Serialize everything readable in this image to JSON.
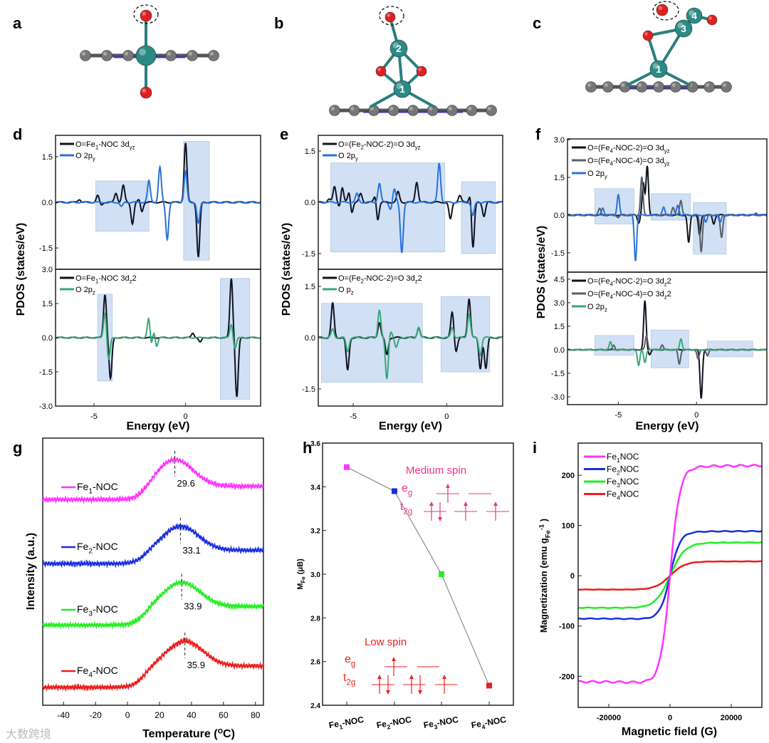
{
  "panel_letters": [
    "a",
    "b",
    "c",
    "d",
    "e",
    "f",
    "g",
    "h",
    "i"
  ],
  "structures": {
    "b_atom_labels": [
      "1",
      "2"
    ],
    "c_atom_labels": [
      "1",
      "3",
      "4"
    ]
  },
  "watermark": "大数跨境",
  "chart_data": [
    {
      "id": "d_top",
      "type": "line",
      "xlim": [
        -7.1,
        4.1
      ],
      "ylim": [
        -2.2,
        2.2
      ],
      "xticks": [],
      "yticks": [
        1.5,
        0,
        -1.5
      ],
      "ylabel": "PDOS (states/eV)",
      "highlight_boxes": [
        [
          -4.9,
          -2.0,
          -0.95,
          0.7
        ],
        [
          -0.1,
          1.3,
          -1.9,
          2.0
        ]
      ],
      "series": [
        {
          "name": "O=Fe_{1}-NOC 3d_{yz}",
          "color": "#10121e",
          "peaks": [
            [
              -5.8,
              0.1
            ],
            [
              -4.8,
              0.22
            ],
            [
              -3.8,
              0.6
            ],
            [
              -3.4,
              0.55
            ],
            [
              -2.9,
              0.2
            ],
            [
              -2.5,
              0.15
            ],
            [
              0,
              1.95
            ],
            [
              -3.8,
              -0.3
            ],
            [
              -2.9,
              -0.9
            ],
            [
              -2.4,
              -0.35
            ],
            [
              -4.6,
              -0.1
            ],
            [
              0.7,
              -1.8
            ]
          ]
        },
        {
          "name": "O 2p_{y}",
          "color": "#2a72d8",
          "peaks": [
            [
              -2.0,
              0.7
            ],
            [
              -1.4,
              1.15
            ],
            [
              0,
              1.0
            ],
            [
              -3.5,
              -0.15
            ],
            [
              -1.0,
              -1.2
            ],
            [
              0.7,
              -0.7
            ]
          ]
        }
      ]
    },
    {
      "id": "d_bottom",
      "type": "line",
      "xlim": [
        -7.1,
        4.1
      ],
      "ylim": [
        -3.0,
        3.0
      ],
      "xticks": [
        -5,
        0
      ],
      "yticks": [
        3.0,
        1.5,
        0,
        -1.5,
        -3.0
      ],
      "xlabel": "Energy (eV)",
      "highlight_boxes": [
        [
          -4.8,
          -4.0,
          -1.9,
          1.9
        ],
        [
          1.9,
          3.5,
          -2.7,
          2.6
        ]
      ],
      "series": [
        {
          "name": "O=Fe_{1}-NOC 3d_{z^{2}}",
          "color": "#10121e",
          "peaks": [
            [
              -4.4,
              1.9
            ],
            [
              -4.1,
              -1.8
            ],
            [
              0.4,
              0.2
            ],
            [
              0.8,
              -0.2
            ],
            [
              2.5,
              2.6
            ],
            [
              2.8,
              -2.6
            ]
          ]
        },
        {
          "name": "O 2p_{z}",
          "color": "#3aa878",
          "peaks": [
            [
              -4.4,
              1.1
            ],
            [
              -4.2,
              -1.0
            ],
            [
              -2.0,
              1.0
            ],
            [
              -1.7,
              0.4
            ],
            [
              -1.9,
              -0.5
            ],
            [
              -1.6,
              -0.5
            ],
            [
              2.5,
              0.6
            ],
            [
              2.7,
              -0.5
            ]
          ]
        }
      ]
    },
    {
      "id": "e_top",
      "type": "line",
      "xlim": [
        -6.87,
        3.0
      ],
      "ylim": [
        -1.96,
        1.96
      ],
      "xticks": [],
      "yticks": [
        1.5,
        0,
        -1.5
      ],
      "ylabel": "PDOS (states/eV)",
      "highlight_boxes": [
        [
          -6.2,
          -0.1,
          -1.45,
          1.15
        ],
        [
          0.8,
          2.6,
          -1.5,
          0.6
        ]
      ],
      "series": [
        {
          "name": "O=(Fe_{2}-NOC-2)=O 3d_{yz}",
          "color": "#10121e",
          "peaks": [
            [
              -6.3,
              0.1
            ],
            [
              -6.0,
              0.45
            ],
            [
              -5.6,
              0.5
            ],
            [
              -5.2,
              0.4
            ],
            [
              -4.6,
              0.25
            ],
            [
              -3.8,
              0.3
            ],
            [
              -2.6,
              0.3
            ],
            [
              -1.6,
              0.6
            ],
            [
              0.7,
              0.2
            ],
            [
              1.3,
              0.45
            ],
            [
              -5.7,
              -0.2
            ],
            [
              -5.1,
              -0.4
            ],
            [
              -3.7,
              -0.6
            ],
            [
              0.2,
              -0.5
            ],
            [
              1.4,
              -1.5
            ],
            [
              2.0,
              -0.4
            ]
          ]
        },
        {
          "name": "O 2p_{y}",
          "color": "#2a72d8",
          "peaks": [
            [
              -4.8,
              0.25
            ],
            [
              -3.6,
              0.55
            ],
            [
              -2.8,
              0.38
            ],
            [
              -0.4,
              1.15
            ],
            [
              1.4,
              0.2
            ],
            [
              -3.0,
              -0.2
            ],
            [
              -2.4,
              -1.45
            ],
            [
              1.4,
              -0.6
            ]
          ]
        }
      ]
    },
    {
      "id": "e_bottom",
      "type": "line",
      "xlim": [
        -6.87,
        3.0
      ],
      "ylim": [
        -2.0,
        2.0
      ],
      "xticks": [
        -5,
        0
      ],
      "yticks": [
        1.5,
        0,
        -1.5
      ],
      "xlabel": "Energy (eV)",
      "highlight_boxes": [
        [
          -6.7,
          -1.3,
          -1.3,
          1.0
        ],
        [
          -0.3,
          2.3,
          -1.0,
          1.2
        ]
      ],
      "series": [
        {
          "name": "O=(Fe_{2}-NOC-2)=O 3d_{z^{2}}",
          "color": "#10121e",
          "peaks": [
            [
              -6.1,
              1.0
            ],
            [
              -3.6,
              0.45
            ],
            [
              -1.5,
              0.3
            ],
            [
              0.3,
              0.75
            ],
            [
              1.2,
              1.15
            ],
            [
              -5.3,
              -0.95
            ],
            [
              -3.2,
              -0.5
            ],
            [
              0.5,
              -0.4
            ],
            [
              1.8,
              -0.9
            ],
            [
              2.1,
              -0.9
            ]
          ]
        },
        {
          "name": "O p_{z}",
          "color": "#3aa878",
          "peaks": [
            [
              -6.1,
              0.25
            ],
            [
              -3.6,
              0.8
            ],
            [
              -3.0,
              0.2
            ],
            [
              -1.5,
              0.3
            ],
            [
              0.3,
              0.3
            ],
            [
              1.2,
              0.7
            ],
            [
              -5.3,
              -0.4
            ],
            [
              -3.2,
              -1.2
            ],
            [
              -2.7,
              -0.3
            ],
            [
              1.8,
              -0.5
            ]
          ]
        }
      ]
    },
    {
      "id": "f_top",
      "type": "line",
      "xlim": [
        -8.25,
        4.5
      ],
      "ylim": [
        -2.27,
        3.03
      ],
      "xticks": [],
      "yticks": [
        3.0,
        1.5,
        0,
        -1.5
      ],
      "ylabel": "PDOS (states/eV)",
      "highlight_boxes": [
        [
          -6.5,
          -4.0,
          -0.35,
          1.05
        ],
        [
          -2.9,
          -0.4,
          -0.2,
          0.85
        ],
        [
          -0.2,
          1.9,
          -1.55,
          0.5
        ]
      ],
      "series": [
        {
          "name": "O=(Fe_{4}-NOC-2)=O 3d_{yz}",
          "color": "#10121e",
          "peaks": [
            [
              -3.4,
              1.25
            ],
            [
              -3.15,
              1.95
            ],
            [
              -3.7,
              -0.3
            ],
            [
              -0.5,
              -1.1
            ],
            [
              0.2,
              -0.8
            ],
            [
              1.1,
              -0.35
            ]
          ]
        },
        {
          "name": "O=(Fe_{4}-NOC-4)=O 3d_{yz}",
          "color": "#5a5e66",
          "peaks": [
            [
              -6.2,
              0.25
            ],
            [
              -3.5,
              1.5
            ],
            [
              -1.0,
              0.6
            ],
            [
              -1.5,
              0.3
            ],
            [
              0.3,
              -1.45
            ],
            [
              1.6,
              -0.9
            ],
            [
              -5.0,
              -0.1
            ]
          ]
        },
        {
          "name": "O 2p_{y}",
          "color": "#2a72d8",
          "peaks": [
            [
              -5.0,
              0.8
            ],
            [
              -6.0,
              0.3
            ],
            [
              -2.1,
              0.3
            ],
            [
              -1.2,
              0.4
            ],
            [
              3.8,
              0.1
            ],
            [
              -3.9,
              -1.8
            ],
            [
              0.6,
              -0.3
            ],
            [
              1.5,
              -0.3
            ]
          ]
        }
      ]
    },
    {
      "id": "f_bottom",
      "type": "line",
      "xlim": [
        -8.25,
        4.5
      ],
      "ylim": [
        -3.5,
        4.95
      ],
      "xticks": [
        -5,
        0
      ],
      "yticks": [
        4.5,
        3.0,
        1.5,
        0,
        -1.5,
        -3.0
      ],
      "xlabel": "Energy (eV)",
      "highlight_boxes": [
        [
          -6.5,
          -4.0,
          -0.35,
          0.9
        ],
        [
          -2.9,
          -0.5,
          -1.15,
          1.25
        ],
        [
          0.7,
          3.6,
          -0.45,
          0.55
        ]
      ],
      "series": [
        {
          "name": "O=(Fe_{4}-NOC-2)=O 3d_{z^{2}}",
          "color": "#10121e",
          "peaks": [
            [
              -3.3,
              3.1
            ],
            [
              0.3,
              -3.1
            ],
            [
              -3.0,
              -0.3
            ]
          ]
        },
        {
          "name": "O=(Fe_{4}-NOC-4)=O 3d_{z^{2}}",
          "color": "#5a5e66",
          "peaks": [
            [
              -3.2,
              0.9
            ],
            [
              -5.3,
              0.3
            ],
            [
              -2.2,
              0.3
            ],
            [
              -1.1,
              -0.9
            ],
            [
              0.1,
              -0.6
            ],
            [
              0.7,
              -0.4
            ]
          ]
        },
        {
          "name": "O 2p_{z}",
          "color": "#3aa878",
          "peaks": [
            [
              -5.5,
              0.5
            ],
            [
              -1.0,
              0.7
            ],
            [
              -3.7,
              -1.0
            ],
            [
              -3.3,
              -0.8
            ]
          ]
        }
      ]
    },
    {
      "id": "g",
      "type": "line",
      "xlim": [
        -53,
        85
      ],
      "ylim": [
        0,
        10
      ],
      "xticks": [
        -40,
        -20,
        0,
        20,
        40,
        60,
        80
      ],
      "xlabel": "Temperature (^{o}C)",
      "ylabel": "Intensity (a.u.)",
      "series": [
        {
          "name": "Fe_{1}-NOC",
          "color": "#ff33ff",
          "peak_temp": 29.6,
          "base_left": 7.7,
          "peak": 9.2,
          "base_right": 8.2
        },
        {
          "name": "Fe_{2}-NOC",
          "color": "#1a2fe0",
          "peak_temp": 33.1,
          "base_left": 5.3,
          "peak": 6.7,
          "base_right": 5.8
        },
        {
          "name": "Fe_{3}-NOC",
          "color": "#22ee22",
          "peak_temp": 33.9,
          "base_left": 3.0,
          "peak": 4.6,
          "base_right": 3.7
        },
        {
          "name": "Fe_{4}-NOC",
          "color": "#ee1c1c",
          "peak_temp": 35.9,
          "base_left": 0.67,
          "peak": 2.4,
          "base_right": 1.47
        }
      ]
    },
    {
      "id": "h",
      "type": "line",
      "categories": [
        "Fe_{1}-NOC",
        "Fe_{2}-NOC",
        "Fe_{3}-NOC",
        "Fe_{4}-NOC"
      ],
      "values": [
        3.49,
        3.38,
        3.0,
        2.49
      ],
      "colors": [
        "#ff33ff",
        "#1a2fe0",
        "#22ee22",
        "#ee1c1c"
      ],
      "ylim": [
        2.4,
        3.6
      ],
      "yticks": [
        2.4,
        2.6,
        2.8,
        3.0,
        3.2,
        3.4,
        3.6
      ],
      "ylabel": "M_{Fe} (μB)",
      "annotations": {
        "medium_spin": "Medium spin",
        "low_spin": "Low spin",
        "eg": "e_{g}",
        "t2g": "t_{2g}",
        "medium_color": "#ee3388",
        "low_color": "#ee2222"
      }
    },
    {
      "id": "i",
      "type": "line",
      "xlim": [
        -30000,
        30000
      ],
      "ylim": [
        -262,
        264
      ],
      "xticks": [
        -20000,
        0,
        20000
      ],
      "yticks": [
        -200,
        -100,
        0,
        100,
        200
      ],
      "xlabel": "Magnetic field (G)",
      "ylabel": "Magnetization (emu g_{Fe}^{-1} )",
      "legend": "top-left",
      "series": [
        {
          "name": "Fe_{1}NOC",
          "color": "#ff33ff",
          "saturation": 215,
          "half_field": 3200
        },
        {
          "name": "Fe_{2}NOC",
          "color": "#1a2fe0",
          "saturation": 87,
          "half_field": 3300
        },
        {
          "name": "Fe_{3}NOC",
          "color": "#22ee22",
          "saturation": 65,
          "half_field": 4800
        },
        {
          "name": "Fe_{4}NOC",
          "color": "#ee1c1c",
          "saturation": 28,
          "half_field": 4800
        }
      ]
    }
  ]
}
